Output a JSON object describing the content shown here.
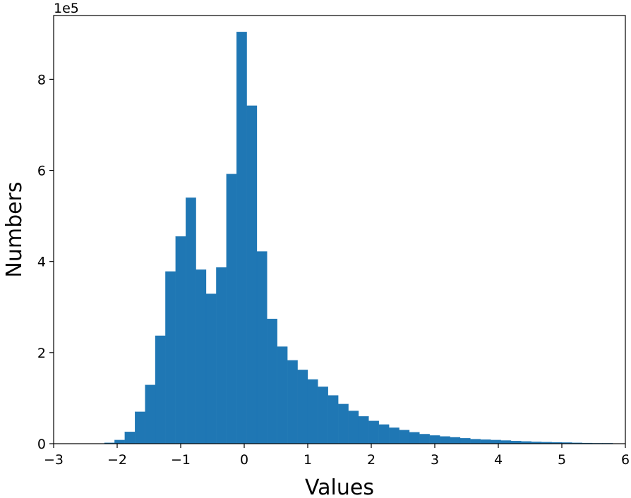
{
  "chart_data": {
    "type": "bar",
    "histogram": true,
    "xlabel": "Values",
    "ylabel": "Numbers",
    "y_offset_text": "1e5",
    "y_scale": 100000,
    "xlim": [
      -3,
      6
    ],
    "ylim": [
      0,
      9.4
    ],
    "xticks": [
      -3,
      -2,
      -1,
      0,
      1,
      2,
      3,
      4,
      5,
      6
    ],
    "xtick_labels": [
      "−3",
      "−2",
      "−1",
      "0",
      "1",
      "2",
      "3",
      "4",
      "5",
      "6"
    ],
    "yticks": [
      0,
      2,
      4,
      6,
      8
    ],
    "ytick_labels": [
      "0",
      "2",
      "4",
      "6",
      "8"
    ],
    "bar_color": "#1f77b4",
    "grid": false,
    "bin_start": -2.2,
    "bin_width": 0.16,
    "values": [
      0.02,
      0.08,
      0.26,
      0.7,
      1.29,
      2.37,
      3.78,
      4.55,
      5.4,
      3.82,
      3.29,
      3.87,
      5.92,
      9.04,
      7.42,
      4.22,
      2.74,
      2.13,
      1.83,
      1.62,
      1.41,
      1.25,
      1.06,
      0.87,
      0.72,
      0.6,
      0.5,
      0.42,
      0.35,
      0.3,
      0.25,
      0.21,
      0.18,
      0.16,
      0.14,
      0.12,
      0.1,
      0.09,
      0.08,
      0.07,
      0.06,
      0.05,
      0.04,
      0.035,
      0.03,
      0.025,
      0.02,
      0.015,
      0.01,
      0.01
    ]
  }
}
